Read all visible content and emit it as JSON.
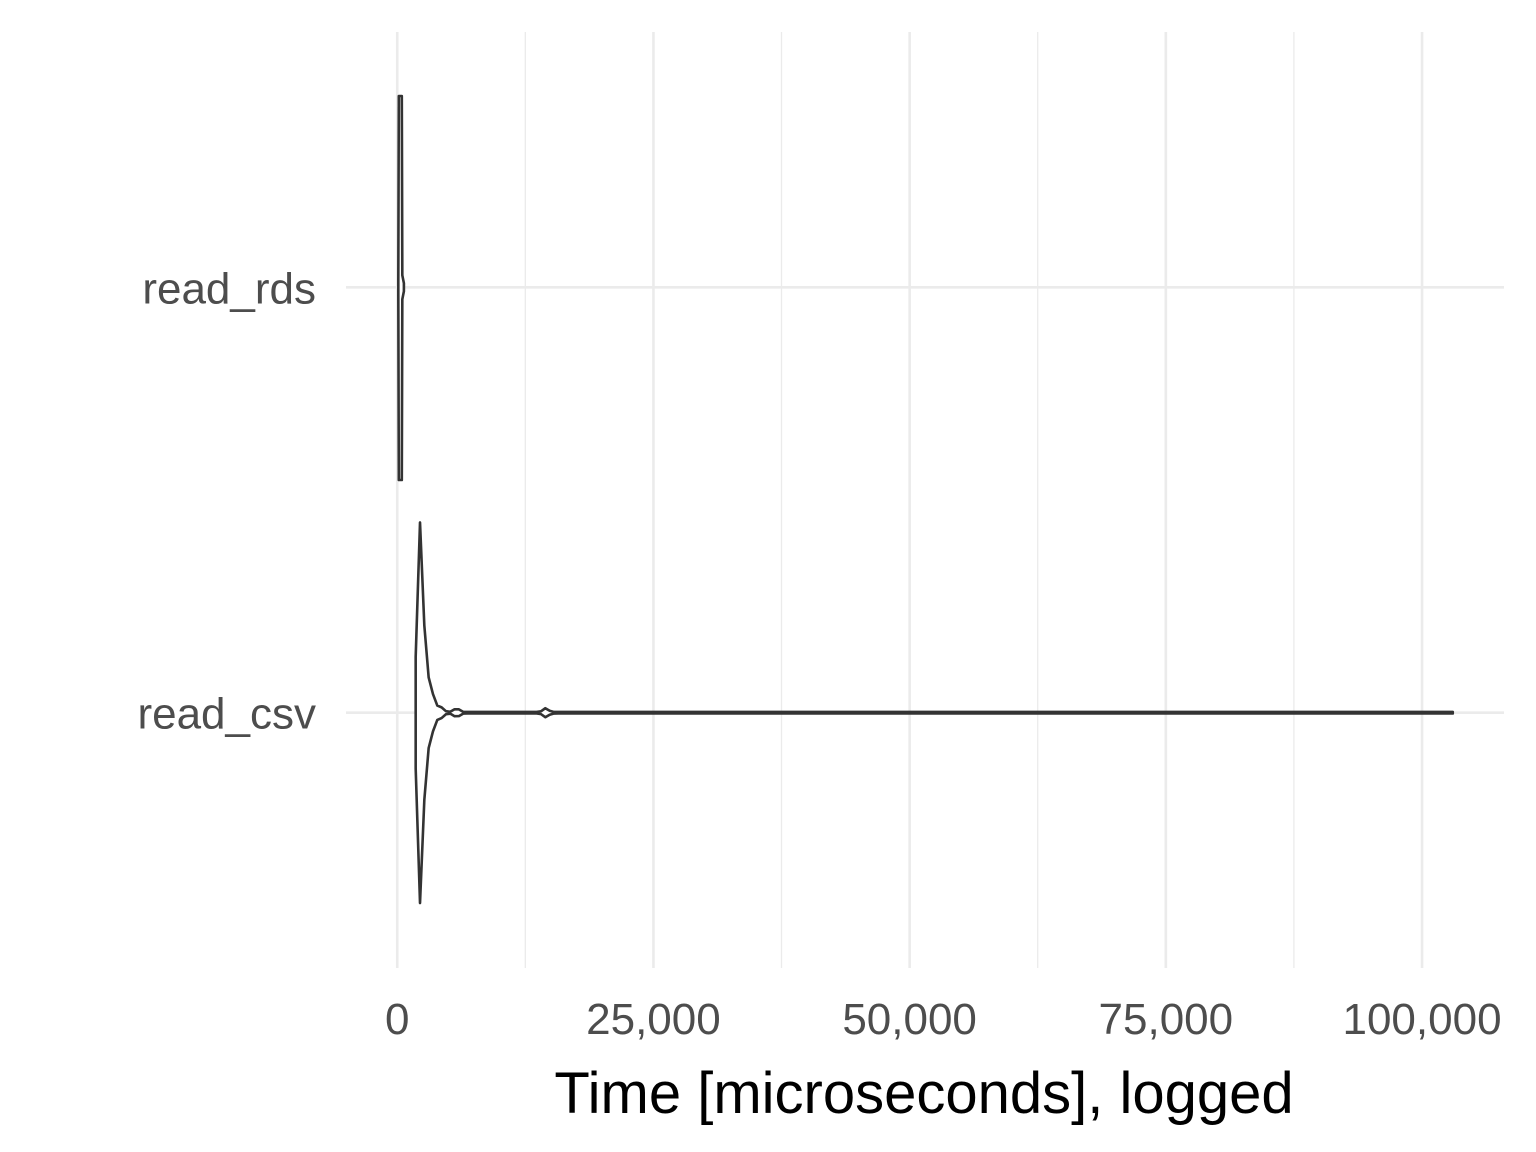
{
  "chart_data": {
    "type": "violin",
    "orientation": "horizontal",
    "xlabel": "Time [microseconds], logged",
    "ylabel": "",
    "xlim": [
      -5000,
      108000
    ],
    "x_ticks": [
      0,
      25000,
      50000,
      75000,
      100000
    ],
    "x_tick_labels": [
      "0",
      "25,000",
      "50,000",
      "75,000",
      "100,000"
    ],
    "x_minor_ticks": [
      12500,
      37500,
      62500,
      87500
    ],
    "categories": [
      "read_rds",
      "read_csv"
    ],
    "grid": true,
    "legend": "none",
    "series": [
      {
        "category": "read_rds",
        "min": 150,
        "max": 650,
        "bulk_center": 300,
        "max_half_width": 0.2
      },
      {
        "category": "read_csv",
        "min": 1800,
        "max": 103000,
        "bulk_center": 2100,
        "max_half_width": 0.2,
        "small_bumps": [
          4300,
          5800,
          14500
        ]
      }
    ],
    "colors": {
      "outline": "#333333",
      "fill": "#ffffff",
      "grid": "#ebebeb"
    }
  }
}
